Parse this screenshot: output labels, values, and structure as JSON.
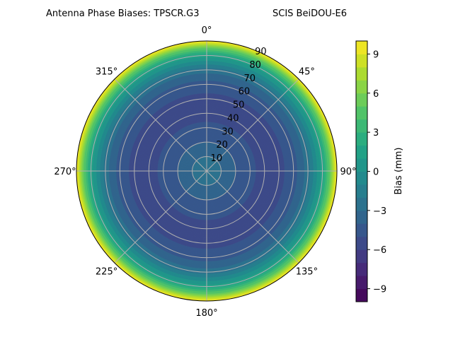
{
  "chart_data": {
    "type": "heatmap",
    "subtype": "polar-filled-contour",
    "title_left": "Antenna Phase Biases: TPSCR.G3",
    "title_right": "SCIS BeiDOU-E6",
    "colormap": "viridis",
    "theta_direction": "clockwise",
    "theta_zero": "top",
    "theta_tick_labels": [
      "0°",
      "45°",
      "90°",
      "135°",
      "180°",
      "225°",
      "270°",
      "315°"
    ],
    "theta_ticks_deg": [
      0,
      45,
      90,
      135,
      180,
      225,
      270,
      315
    ],
    "radial_ticks": [
      10,
      20,
      30,
      40,
      50,
      60,
      70,
      80,
      90
    ],
    "radial_tick_labels": [
      "10",
      "20",
      "30",
      "40",
      "50",
      "60",
      "70",
      "80",
      "90"
    ],
    "radial_range": [
      0,
      90
    ],
    "grid": true,
    "colorbar": {
      "label": "Bias (mm)",
      "range": [
        -10,
        10
      ],
      "level_step": 1,
      "ticks": [
        -9,
        -6,
        -3,
        0,
        3,
        6,
        9
      ],
      "tick_labels": [
        "−9",
        "−6",
        "−3",
        "0",
        "3",
        "6",
        "9"
      ]
    },
    "radial_profile": {
      "zenith_deg": [
        0,
        10,
        20,
        30,
        40,
        45,
        50,
        60,
        70,
        80,
        85,
        90
      ],
      "bias_mm": [
        -2.5,
        -3.0,
        -4.0,
        -4.8,
        -5.3,
        -5.5,
        -5.3,
        -4.5,
        -2.5,
        1.5,
        5.0,
        10.0
      ]
    }
  }
}
